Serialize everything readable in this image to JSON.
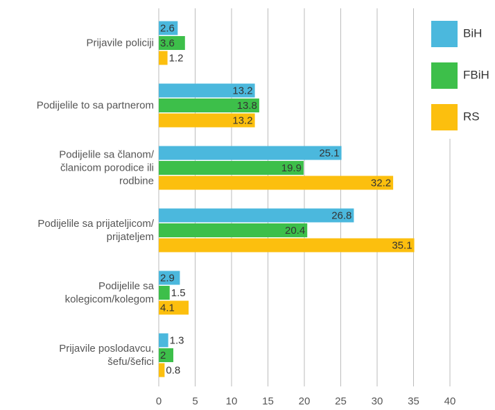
{
  "chart_data": {
    "type": "bar",
    "orientation": "horizontal",
    "categories": [
      "Prijavile policiji",
      "Podijelile to sa partnerom",
      "Podijelile sa članom/\nčlanicom porodice ili\nrodbine",
      "Podijelile sa prijateljicom/\nprijateljem",
      "Podijelile sa\nkolegicom/kolegom",
      "Prijavile poslodavcu,\nšefu/šefici"
    ],
    "series": [
      {
        "name": "BiH",
        "color": "#4bb8dd",
        "values": [
          2.6,
          13.2,
          25.1,
          26.8,
          2.9,
          1.3
        ]
      },
      {
        "name": "FBiH",
        "color": "#3dbf4a",
        "values": [
          3.6,
          13.8,
          19.9,
          20.4,
          1.5,
          2
        ]
      },
      {
        "name": "RS",
        "color": "#fcbf0e",
        "values": [
          1.2,
          13.2,
          32.2,
          35.1,
          4.1,
          0.8
        ]
      }
    ],
    "xlim": [
      0,
      40
    ],
    "xticks": [
      0,
      5,
      10,
      15,
      20,
      25,
      30,
      35,
      40
    ],
    "grid": true,
    "legend": "top-right"
  }
}
